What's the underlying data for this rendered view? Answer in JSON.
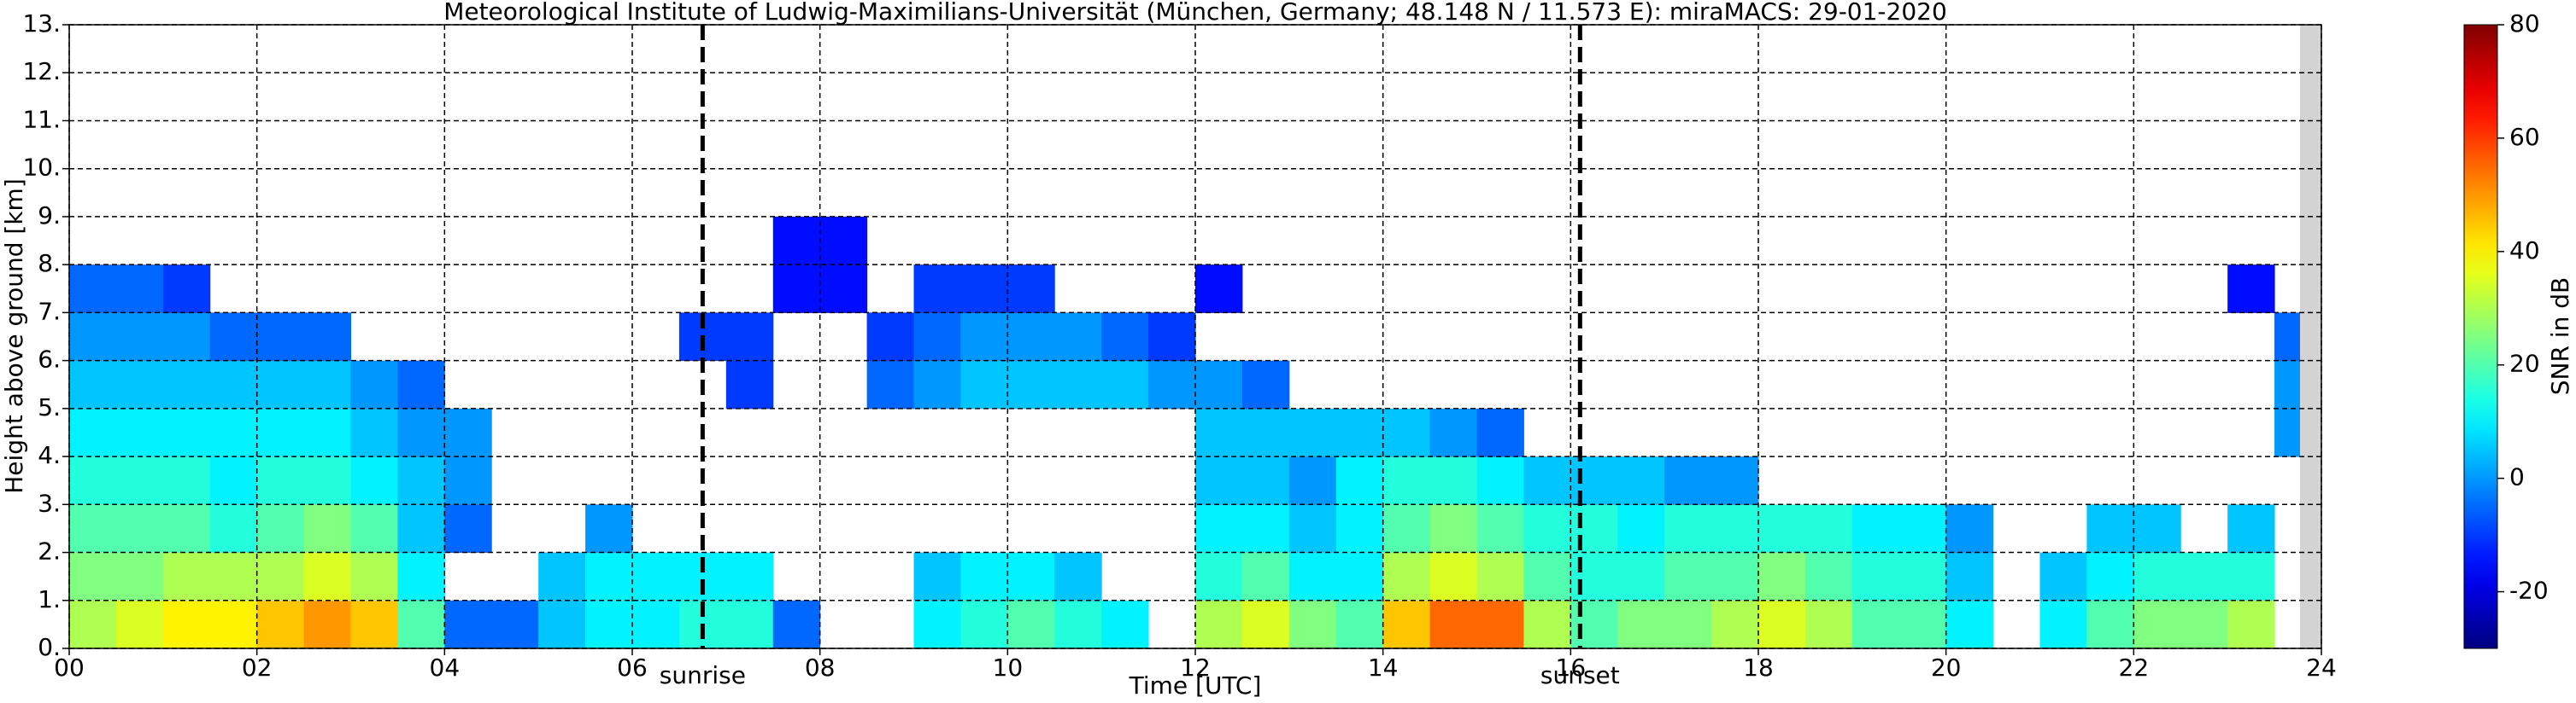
{
  "chart_data": {
    "type": "heatmap",
    "title": "Meteorological Institute of Ludwig-Maximilians-Universität (München, Germany; 48.148 N / 11.573 E):    miraMACS: 29-01-2020",
    "xlabel": "Time [UTC]",
    "ylabel": "Height above ground [km]",
    "xlim": [
      0,
      24
    ],
    "ylim": [
      0,
      13
    ],
    "xticks": [
      {
        "value": 0,
        "label": "00"
      },
      {
        "value": 2,
        "label": "02"
      },
      {
        "value": 4,
        "label": "04"
      },
      {
        "value": 6,
        "label": "06"
      },
      {
        "value": 8,
        "label": "08"
      },
      {
        "value": 10,
        "label": "10"
      },
      {
        "value": 12,
        "label": "12"
      },
      {
        "value": 14,
        "label": "14"
      },
      {
        "value": 16,
        "label": "16"
      },
      {
        "value": 18,
        "label": "18"
      },
      {
        "value": 20,
        "label": "20"
      },
      {
        "value": 22,
        "label": "22"
      },
      {
        "value": 24,
        "label": "24"
      }
    ],
    "yticks": [
      {
        "value": 0,
        "label": "0."
      },
      {
        "value": 1,
        "label": "1."
      },
      {
        "value": 2,
        "label": "2."
      },
      {
        "value": 3,
        "label": "3."
      },
      {
        "value": 4,
        "label": "4."
      },
      {
        "value": 5,
        "label": "5."
      },
      {
        "value": 6,
        "label": "6."
      },
      {
        "value": 7,
        "label": "7."
      },
      {
        "value": 8,
        "label": "8."
      },
      {
        "value": 9,
        "label": "9."
      },
      {
        "value": 10,
        "label": "10."
      },
      {
        "value": 11,
        "label": "11."
      },
      {
        "value": 12,
        "label": "12."
      },
      {
        "value": 13,
        "label": "13."
      }
    ],
    "grid": true,
    "x_bins": [
      0,
      0.5,
      1,
      1.5,
      2,
      2.5,
      3,
      3.5,
      4,
      4.5,
      5,
      5.5,
      6,
      6.5,
      7,
      7.5,
      8,
      8.5,
      9,
      9.5,
      10,
      10.5,
      11,
      11.5,
      12,
      12.5,
      13,
      13.5,
      14,
      14.5,
      15,
      15.5,
      16,
      16.5,
      17,
      17.5,
      18,
      18.5,
      19,
      19.5,
      20,
      20.5,
      21,
      21.5,
      22,
      22.5,
      23,
      23.5,
      24
    ],
    "y_bins": [
      0,
      1,
      2,
      3,
      4,
      5,
      6,
      7,
      8,
      9
    ],
    "z": [
      [
        30,
        35,
        40,
        40,
        45,
        50,
        45,
        20,
        -5,
        -5,
        5,
        10,
        10,
        15,
        15,
        -5,
        null,
        null,
        10,
        15,
        20,
        15,
        10,
        null,
        30,
        35,
        25,
        20,
        45,
        55,
        55,
        30,
        20,
        25,
        25,
        30,
        35,
        30,
        20,
        20,
        10,
        null,
        10,
        20,
        25,
        25,
        30,
        null
      ],
      [
        25,
        25,
        30,
        30,
        30,
        35,
        30,
        10,
        null,
        null,
        5,
        10,
        10,
        10,
        10,
        null,
        null,
        null,
        5,
        10,
        10,
        5,
        null,
        null,
        15,
        20,
        10,
        10,
        30,
        35,
        30,
        20,
        15,
        15,
        20,
        20,
        25,
        20,
        15,
        15,
        5,
        null,
        5,
        10,
        15,
        15,
        15,
        null
      ],
      [
        20,
        20,
        20,
        15,
        20,
        25,
        20,
        5,
        -5,
        null,
        null,
        0,
        null,
        null,
        null,
        null,
        null,
        null,
        null,
        null,
        null,
        null,
        null,
        null,
        10,
        10,
        5,
        10,
        20,
        25,
        20,
        15,
        15,
        10,
        15,
        15,
        15,
        15,
        10,
        10,
        0,
        null,
        null,
        5,
        5,
        null,
        5,
        null
      ],
      [
        15,
        15,
        15,
        10,
        15,
        15,
        10,
        5,
        0,
        null,
        null,
        null,
        null,
        null,
        null,
        null,
        null,
        null,
        null,
        null,
        null,
        null,
        null,
        null,
        5,
        5,
        0,
        10,
        15,
        15,
        10,
        5,
        5,
        5,
        0,
        0,
        null,
        null,
        null,
        null,
        null,
        null,
        null,
        null,
        null,
        null,
        null,
        null
      ],
      [
        10,
        10,
        10,
        10,
        10,
        10,
        5,
        0,
        0,
        null,
        null,
        null,
        null,
        null,
        null,
        null,
        null,
        null,
        null,
        null,
        null,
        null,
        null,
        null,
        5,
        5,
        5,
        5,
        5,
        0,
        -5,
        null,
        null,
        null,
        null,
        null,
        null,
        null,
        null,
        null,
        null,
        null,
        null,
        null,
        null,
        null,
        null,
        0
      ],
      [
        5,
        5,
        5,
        5,
        5,
        5,
        0,
        -5,
        null,
        null,
        null,
        null,
        null,
        null,
        -10,
        null,
        null,
        -5,
        0,
        5,
        5,
        5,
        5,
        0,
        0,
        -5,
        null,
        null,
        null,
        null,
        null,
        null,
        null,
        null,
        null,
        null,
        null,
        null,
        null,
        null,
        null,
        null,
        null,
        null,
        null,
        null,
        null,
        0
      ],
      [
        0,
        0,
        0,
        -5,
        -5,
        -5,
        null,
        null,
        null,
        null,
        null,
        null,
        null,
        -10,
        -10,
        null,
        null,
        -10,
        -5,
        0,
        0,
        0,
        -5,
        -10,
        null,
        null,
        null,
        null,
        null,
        null,
        null,
        null,
        null,
        null,
        null,
        null,
        null,
        null,
        null,
        null,
        null,
        null,
        null,
        null,
        null,
        null,
        null,
        -5
      ],
      [
        -5,
        -5,
        -10,
        null,
        null,
        null,
        null,
        null,
        null,
        null,
        null,
        null,
        null,
        null,
        null,
        -15,
        -15,
        null,
        -10,
        -10,
        -10,
        null,
        null,
        null,
        -15,
        null,
        null,
        null,
        null,
        null,
        null,
        null,
        null,
        null,
        null,
        null,
        null,
        null,
        null,
        null,
        null,
        null,
        null,
        null,
        null,
        null,
        -15,
        null
      ],
      [
        null,
        null,
        null,
        null,
        null,
        null,
        null,
        null,
        null,
        null,
        null,
        null,
        null,
        null,
        null,
        -15,
        -15,
        null,
        null,
        null,
        null,
        null,
        null,
        null,
        null,
        null,
        null,
        null,
        null,
        null,
        null,
        null,
        null,
        null,
        null,
        null,
        null,
        null,
        null,
        null,
        null,
        null,
        null,
        null,
        null,
        null,
        null,
        null
      ]
    ],
    "annotations": [
      {
        "x": 6.75,
        "label": "sunrise"
      },
      {
        "x": 16.1,
        "label": "sunset"
      }
    ],
    "colorbar": {
      "label": "SNR in dB",
      "clim": [
        -30,
        80
      ],
      "ticks": [
        -20,
        0,
        20,
        40,
        60,
        80
      ]
    }
  }
}
